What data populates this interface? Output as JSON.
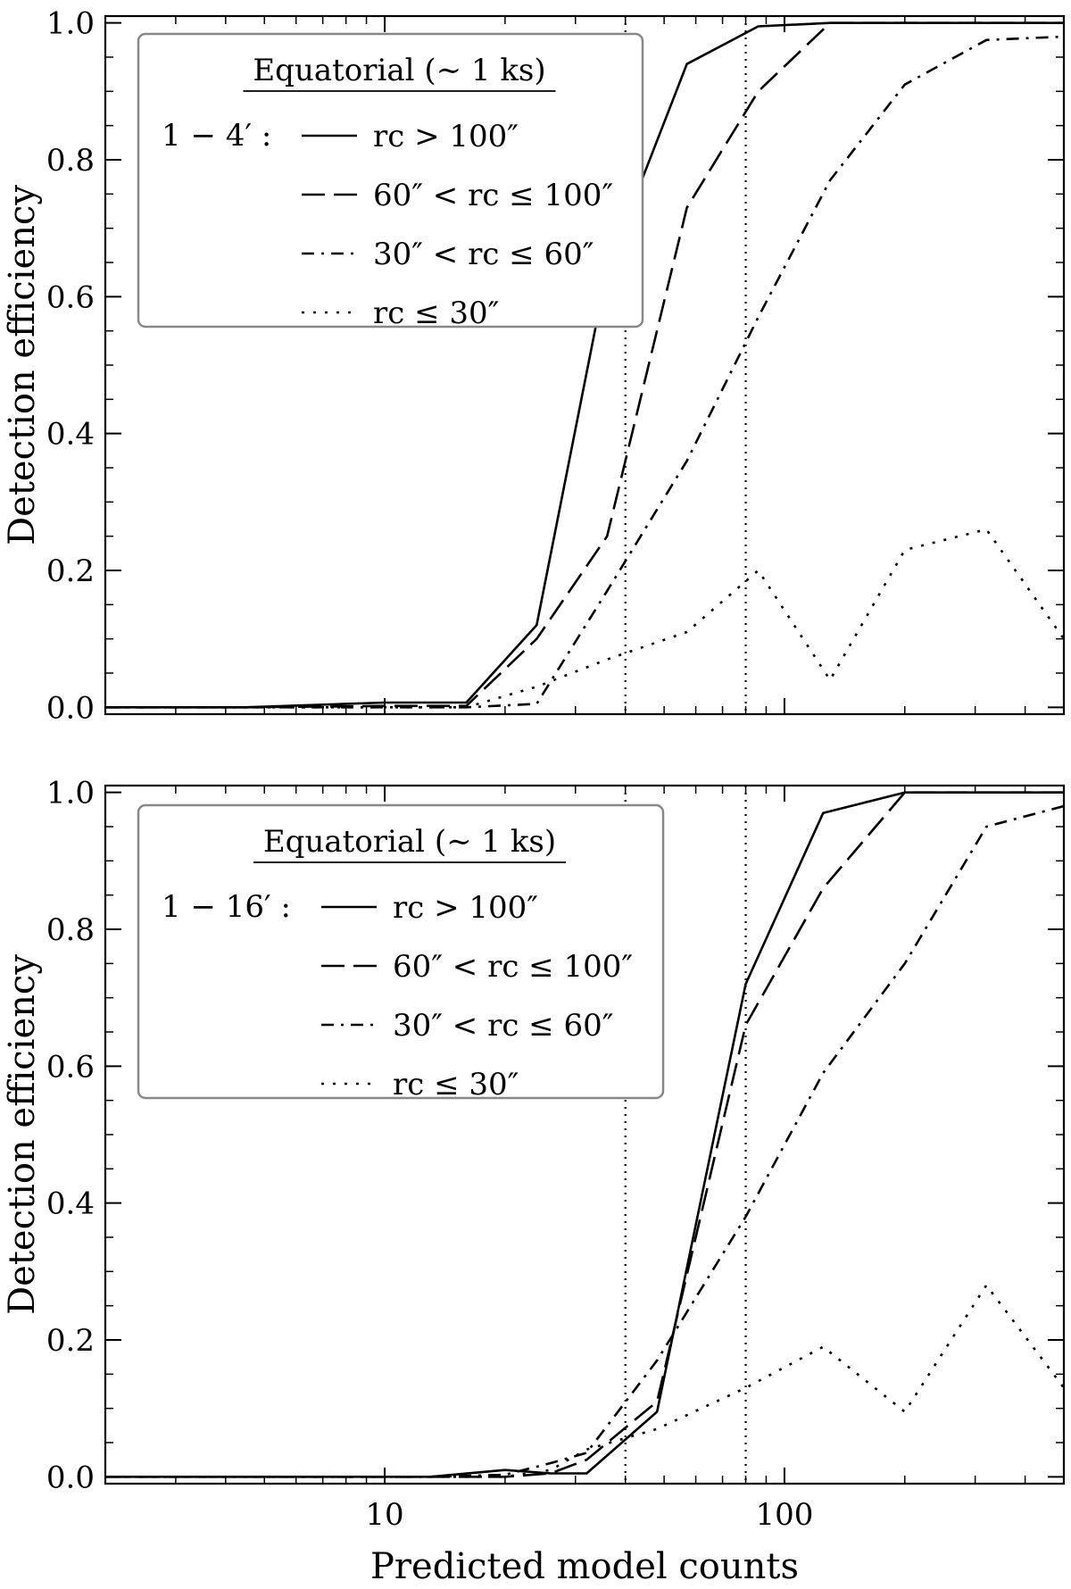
{
  "chart_data": [
    {
      "type": "line",
      "xlabel": "",
      "ylabel": "Detection efficiency",
      "xscale": "log",
      "xlim": [
        2,
        500
      ],
      "ylim": [
        -0.01,
        1.01
      ],
      "xticks": [
        10,
        100
      ],
      "xtick_labels": [
        "",
        ""
      ],
      "yticks": [
        0.0,
        0.2,
        0.4,
        0.6,
        0.8,
        1.0
      ],
      "ytick_labels": [
        "0.0",
        "0.2",
        "0.4",
        "0.6",
        "0.8",
        "1.0"
      ],
      "vlines": [
        40,
        80
      ],
      "grid": false,
      "legend": {
        "placement": "top-left",
        "title": "Equatorial (∼ 1 ks)",
        "group_label": "1 − 4′ :"
      },
      "series": [
        {
          "name": "r_c > 100″",
          "label": "rc > 100″",
          "style": "solid",
          "x": [
            2,
            4.5,
            10,
            16,
            24,
            36,
            57,
            86,
            130,
            200,
            320,
            500
          ],
          "y": [
            0,
            0,
            0.007,
            0.007,
            0.12,
            0.64,
            0.94,
            0.995,
            1.0,
            1.0,
            1.0,
            1.0
          ]
        },
        {
          "name": "60″ < r_c ≤ 100″",
          "label": "60″ < rc ≤ 100″",
          "style": "dashed",
          "x": [
            2,
            4.5,
            10,
            16,
            24,
            36,
            57,
            86,
            130,
            200,
            320,
            500
          ],
          "y": [
            0,
            0,
            0.002,
            0.002,
            0.1,
            0.25,
            0.73,
            0.9,
            1.0,
            1.0,
            1.0,
            1.0
          ]
        },
        {
          "name": "30″ < r_c ≤ 60″",
          "label": "30″ < rc ≤ 60″",
          "style": "dashdot",
          "x": [
            2,
            4.5,
            10,
            16,
            24,
            36,
            57,
            86,
            130,
            200,
            320,
            500
          ],
          "y": [
            0,
            0,
            0,
            0,
            0.005,
            0.17,
            0.36,
            0.57,
            0.77,
            0.91,
            0.975,
            0.98
          ]
        },
        {
          "name": "r_c ≤ 30″",
          "label": "rc ≤ 30″",
          "style": "dotted",
          "x": [
            2,
            4.5,
            10,
            16,
            24,
            36,
            57,
            86,
            130,
            200,
            320,
            500
          ],
          "y": [
            0,
            0,
            0,
            0,
            0.03,
            0.07,
            0.11,
            0.2,
            0.04,
            0.23,
            0.26,
            0.1
          ]
        }
      ]
    },
    {
      "type": "line",
      "xlabel": "Predicted model counts",
      "ylabel": "Detection efficiency",
      "xscale": "log",
      "xlim": [
        2,
        500
      ],
      "ylim": [
        -0.01,
        1.01
      ],
      "xticks": [
        10,
        100
      ],
      "xtick_labels": [
        "10",
        "100"
      ],
      "yticks": [
        0.0,
        0.2,
        0.4,
        0.6,
        0.8,
        1.0
      ],
      "ytick_labels": [
        "0.0",
        "0.2",
        "0.4",
        "0.6",
        "0.8",
        "1.0"
      ],
      "vlines": [
        40,
        80
      ],
      "grid": false,
      "legend": {
        "placement": "top-left",
        "title": "Equatorial (∼ 1 ks)",
        "group_label": "1 − 16′ :"
      },
      "series": [
        {
          "name": "r_c > 100″",
          "label": "rc > 100″",
          "style": "solid",
          "x": [
            2,
            4.5,
            13,
            20,
            26,
            32,
            48,
            80,
            125,
            200,
            320,
            500
          ],
          "y": [
            0,
            0,
            0,
            0.01,
            0.005,
            0.005,
            0.095,
            0.72,
            0.97,
            1.0,
            1.0,
            1.0
          ]
        },
        {
          "name": "60″ < r_c ≤ 100″",
          "label": "60″ < rc ≤ 100″",
          "style": "dashed",
          "x": [
            2,
            4.5,
            13,
            20,
            26,
            32,
            48,
            80,
            125,
            200,
            320,
            500
          ],
          "y": [
            0,
            0,
            0,
            0,
            0.005,
            0.025,
            0.11,
            0.66,
            0.86,
            1.0,
            1.0,
            1.0
          ]
        },
        {
          "name": "30″ < r_c ≤ 60″",
          "label": "30″ < rc ≤ 60″",
          "style": "dashdot",
          "x": [
            2,
            4.5,
            13,
            20,
            26,
            32,
            48,
            80,
            125,
            200,
            320,
            500
          ],
          "y": [
            0,
            0,
            0,
            0.003,
            0.02,
            0.035,
            0.17,
            0.38,
            0.59,
            0.75,
            0.95,
            0.98
          ]
        },
        {
          "name": "r_c ≤ 30″",
          "label": "rc ≤ 30″",
          "style": "dotted",
          "x": [
            2,
            4.5,
            13,
            20,
            26,
            32,
            48,
            80,
            125,
            200,
            320,
            500
          ],
          "y": [
            0,
            0,
            0,
            0,
            0.01,
            0.04,
            0.07,
            0.13,
            0.19,
            0.095,
            0.28,
            0.13
          ]
        }
      ]
    }
  ]
}
